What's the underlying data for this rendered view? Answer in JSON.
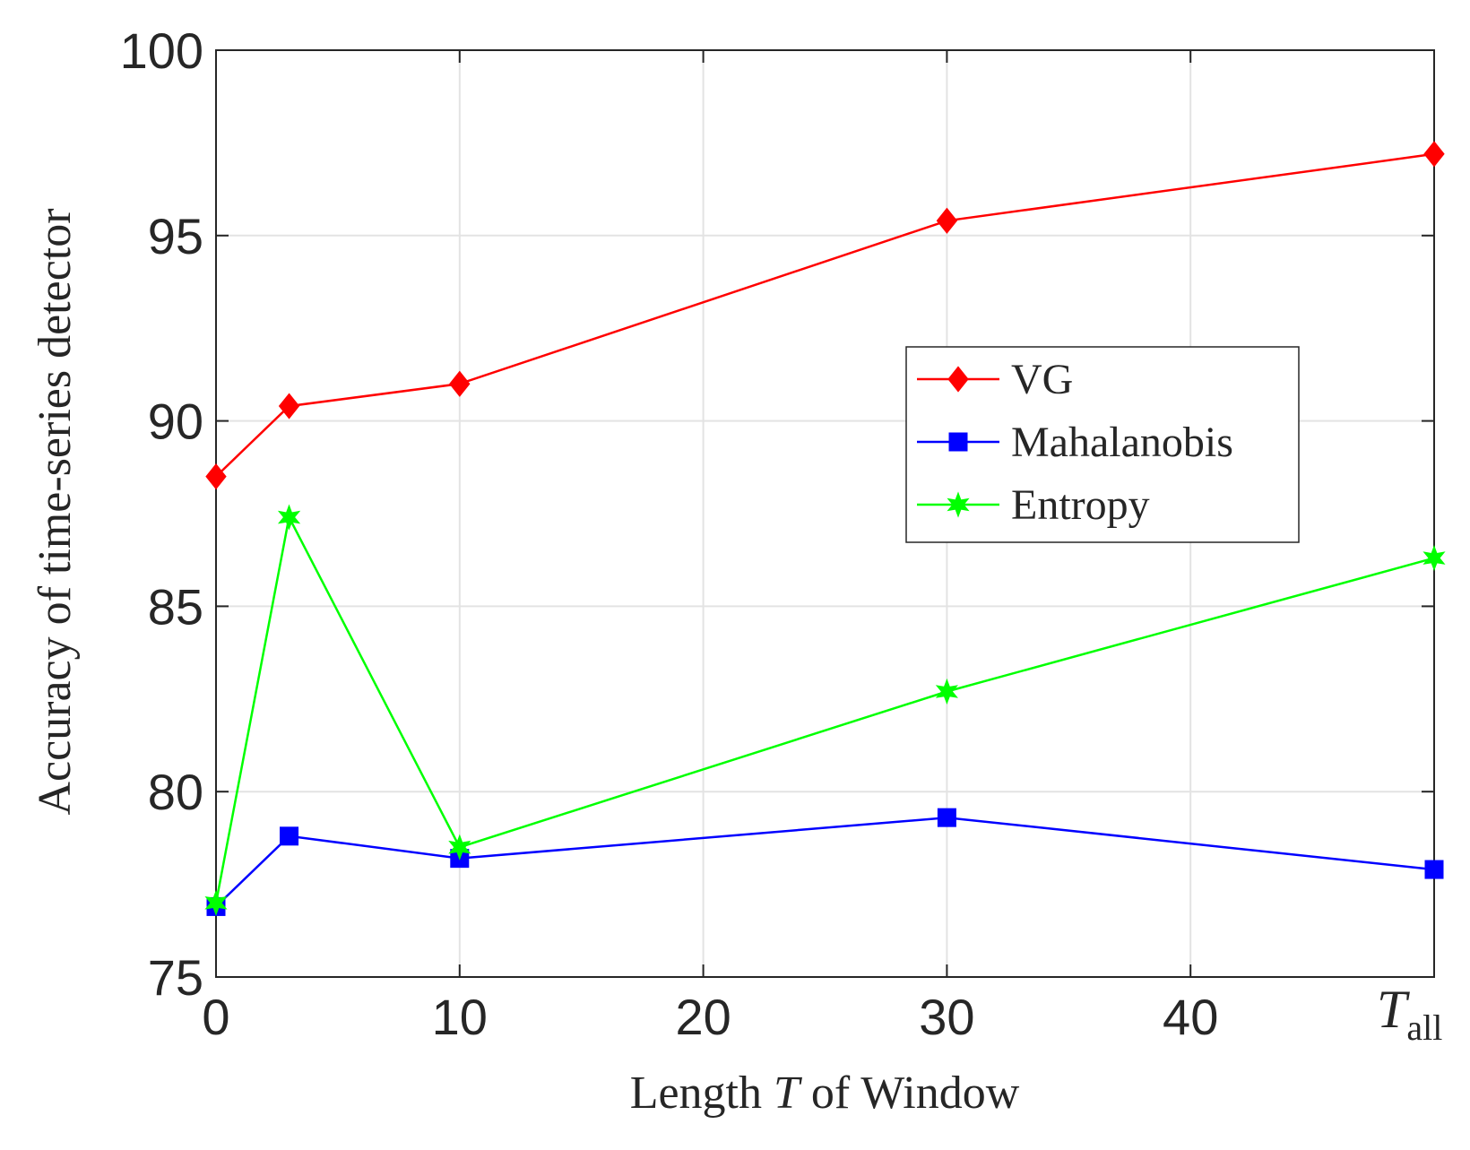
{
  "chart_data": {
    "type": "line",
    "xlabel_parts": [
      "Length ",
      "T",
      " of Window"
    ],
    "ylabel": "Accuracy of time-series detector",
    "x_tick_labels": [
      "0",
      "10",
      "20",
      "30",
      "40"
    ],
    "x_tick_values": [
      0,
      10,
      20,
      30,
      40
    ],
    "x_last_tick": {
      "value": 50,
      "label_main": "T",
      "label_sub": "all"
    },
    "y_tick_values": [
      75,
      80,
      85,
      90,
      95,
      100
    ],
    "y_tick_labels": [
      "75",
      "80",
      "85",
      "90",
      "95",
      "100"
    ],
    "xlim": [
      0,
      50
    ],
    "ylim": [
      75,
      100
    ],
    "grid": true,
    "legend_position": "center-right",
    "x": [
      0,
      3,
      10,
      30,
      50
    ],
    "series": [
      {
        "name": "VG",
        "color": "#ff0000",
        "marker": "diamond",
        "values": [
          88.5,
          90.4,
          91.0,
          95.4,
          97.2
        ]
      },
      {
        "name": "Mahalanobis",
        "color": "#0000ff",
        "marker": "square",
        "values": [
          76.9,
          78.8,
          78.2,
          79.3,
          77.9
        ]
      },
      {
        "name": "Entropy",
        "color": "#00ff00",
        "marker": "star",
        "values": [
          77.0,
          87.4,
          78.5,
          82.7,
          86.3
        ]
      }
    ]
  }
}
